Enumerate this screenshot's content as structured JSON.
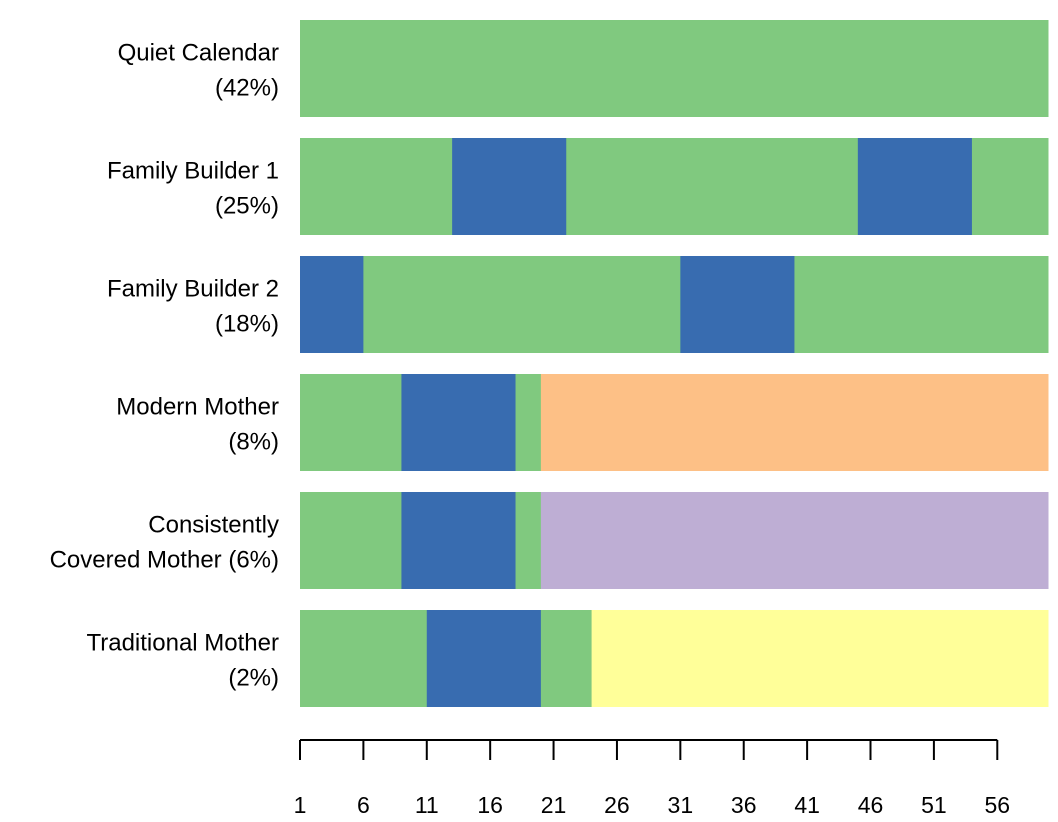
{
  "chart_data": {
    "type": "bar",
    "subtype": "sequence-index-plot",
    "x_ticks": [
      1,
      6,
      11,
      16,
      21,
      26,
      31,
      36,
      41,
      46,
      51,
      56
    ],
    "x_range": [
      1,
      60
    ],
    "state_colors": {
      "green": "#80c97f",
      "blue": "#386cb0",
      "orange": "#fdc086",
      "purple": "#beaed4",
      "yellow": "#ffff99"
    },
    "rows": [
      {
        "label_line1": "Quiet Calendar",
        "label_line2": "(42%)",
        "segments": [
          {
            "state": "green",
            "start": 1,
            "end": 60
          }
        ]
      },
      {
        "label_line1": "Family Builder 1",
        "label_line2": "(25%)",
        "segments": [
          {
            "state": "green",
            "start": 1,
            "end": 13
          },
          {
            "state": "blue",
            "start": 13,
            "end": 22
          },
          {
            "state": "green",
            "start": 22,
            "end": 45
          },
          {
            "state": "blue",
            "start": 45,
            "end": 54
          },
          {
            "state": "green",
            "start": 54,
            "end": 60
          }
        ]
      },
      {
        "label_line1": "Family Builder 2",
        "label_line2": "(18%)",
        "segments": [
          {
            "state": "blue",
            "start": 1,
            "end": 6
          },
          {
            "state": "green",
            "start": 6,
            "end": 31
          },
          {
            "state": "blue",
            "start": 31,
            "end": 40
          },
          {
            "state": "green",
            "start": 40,
            "end": 60
          }
        ]
      },
      {
        "label_line1": "Modern Mother",
        "label_line2": "(8%)",
        "segments": [
          {
            "state": "green",
            "start": 1,
            "end": 9
          },
          {
            "state": "blue",
            "start": 9,
            "end": 18
          },
          {
            "state": "green",
            "start": 18,
            "end": 20
          },
          {
            "state": "orange",
            "start": 20,
            "end": 60
          }
        ]
      },
      {
        "label_line1": "Consistently",
        "label_line2": "Covered Mother (6%)",
        "segments": [
          {
            "state": "green",
            "start": 1,
            "end": 9
          },
          {
            "state": "blue",
            "start": 9,
            "end": 18
          },
          {
            "state": "green",
            "start": 18,
            "end": 20
          },
          {
            "state": "purple",
            "start": 20,
            "end": 60
          }
        ]
      },
      {
        "label_line1": "Traditional Mother",
        "label_line2": "(2%)",
        "segments": [
          {
            "state": "green",
            "start": 1,
            "end": 11
          },
          {
            "state": "blue",
            "start": 11,
            "end": 20
          },
          {
            "state": "green",
            "start": 20,
            "end": 24
          },
          {
            "state": "yellow",
            "start": 24,
            "end": 60
          }
        ]
      }
    ]
  }
}
